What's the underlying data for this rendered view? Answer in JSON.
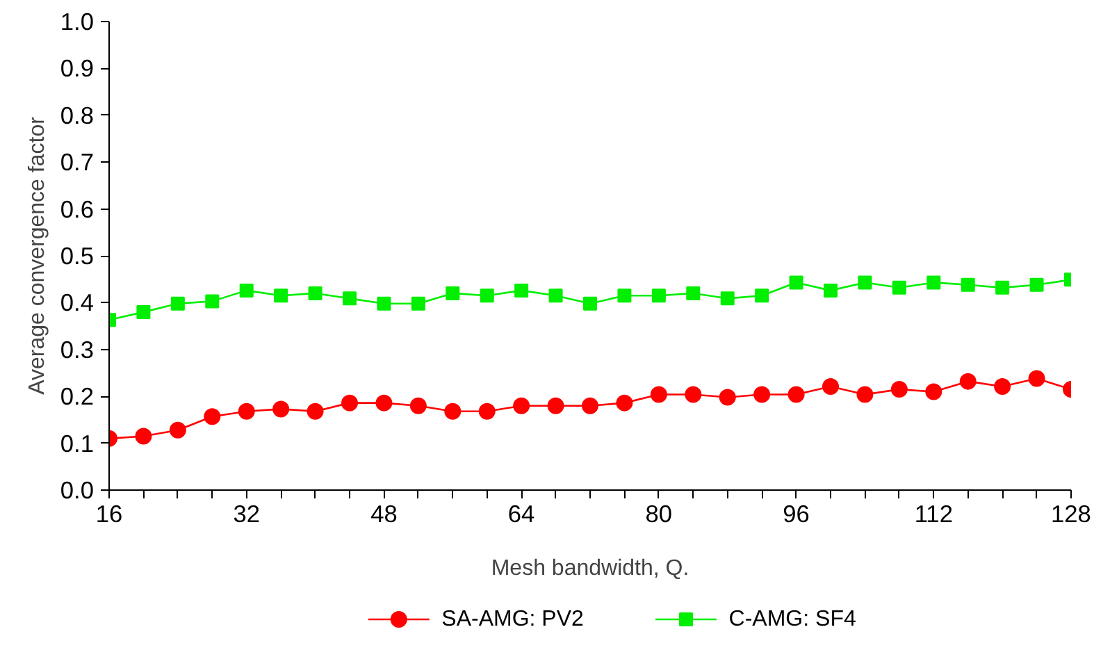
{
  "chart_data": {
    "type": "line",
    "xlabel": "Mesh bandwidth, Q.",
    "ylabel": "Average convergence factor",
    "x": [
      16,
      20,
      24,
      28,
      32,
      36,
      40,
      44,
      48,
      52,
      56,
      60,
      64,
      68,
      72,
      76,
      80,
      84,
      88,
      92,
      96,
      100,
      104,
      108,
      112,
      116,
      120,
      124,
      128
    ],
    "series": [
      {
        "name": "SA-AMG: PV2",
        "color": "#ff0000",
        "marker": "circle",
        "values": [
          0.11,
          0.115,
          0.128,
          0.157,
          0.168,
          0.173,
          0.168,
          0.186,
          0.186,
          0.18,
          0.168,
          0.168,
          0.18,
          0.18,
          0.18,
          0.186,
          0.204,
          0.204,
          0.198,
          0.204,
          0.204,
          0.221,
          0.204,
          0.215,
          0.21,
          0.232,
          0.221,
          0.238,
          0.215
        ]
      },
      {
        "name": "C-AMG: SF4",
        "color": "#00ee00",
        "marker": "square",
        "values": [
          0.363,
          0.38,
          0.398,
          0.403,
          0.426,
          0.415,
          0.42,
          0.409,
          0.398,
          0.398,
          0.42,
          0.415,
          0.426,
          0.415,
          0.398,
          0.415,
          0.415,
          0.42,
          0.409,
          0.415,
          0.443,
          0.426,
          0.443,
          0.432,
          0.443,
          0.438,
          0.432,
          0.438,
          0.449
        ]
      }
    ],
    "xlim": [
      16,
      128
    ],
    "ylim": [
      0,
      1
    ],
    "xticks": [
      16,
      {
        "value": 20,
        "label": null
      },
      {
        "value": 24,
        "label": null
      },
      {
        "value": 28,
        "label": null
      },
      32,
      {
        "value": 36,
        "label": null
      },
      {
        "value": 40,
        "label": null
      },
      {
        "value": 44,
        "label": null
      },
      48,
      {
        "value": 52,
        "label": null
      },
      {
        "value": 56,
        "label": null
      },
      {
        "value": 60,
        "label": null
      },
      64,
      {
        "value": 68,
        "label": null
      },
      {
        "value": 72,
        "label": null
      },
      {
        "value": 76,
        "label": null
      },
      80,
      {
        "value": 84,
        "label": null
      },
      {
        "value": 88,
        "label": null
      },
      {
        "value": 92,
        "label": null
      },
      96,
      {
        "value": 100,
        "label": null
      },
      {
        "value": 104,
        "label": null
      },
      {
        "value": 108,
        "label": null
      },
      112,
      {
        "value": 116,
        "label": null
      },
      {
        "value": 120,
        "label": null
      },
      {
        "value": 124,
        "label": null
      },
      128
    ],
    "yticks": [
      {
        "value": 0,
        "label": "0.0"
      },
      {
        "value": 0.1,
        "label": "0.1"
      },
      {
        "value": 0.2,
        "label": "0.2"
      },
      {
        "value": 0.3,
        "label": "0.3"
      },
      {
        "value": 0.4,
        "label": "0.4"
      },
      {
        "value": 0.5,
        "label": "0.5"
      },
      {
        "value": 0.6,
        "label": "0.6"
      },
      {
        "value": 0.7,
        "label": "0.7"
      },
      {
        "value": 0.8,
        "label": "0.8"
      },
      {
        "value": 0.9,
        "label": "0.9"
      },
      {
        "value": 1,
        "label": "1.0"
      }
    ],
    "grid": false,
    "legend": "bottom",
    "line_style": "solid"
  }
}
